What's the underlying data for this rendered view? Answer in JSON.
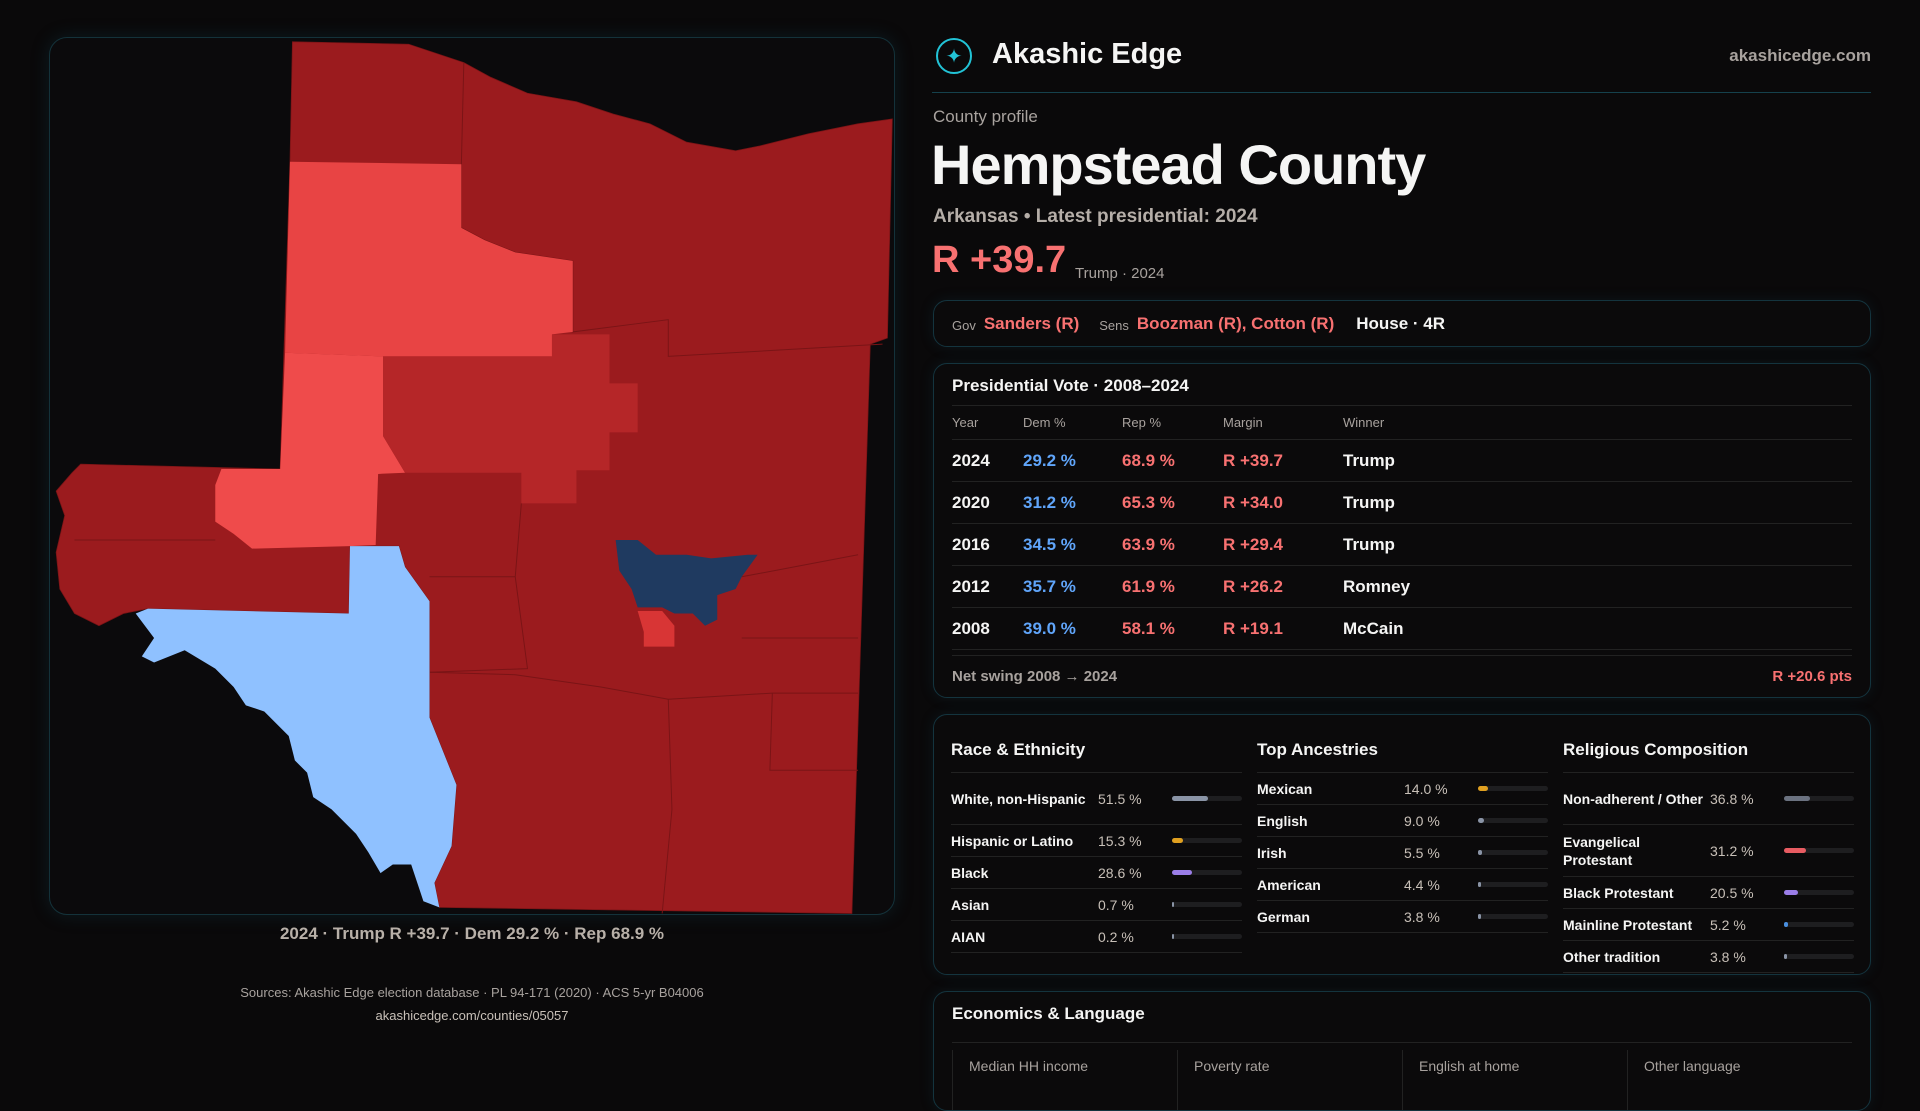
{
  "brand": {
    "name": "Akashic Edge",
    "url": "akashicedge.com",
    "logo_icon": "compass-star-icon"
  },
  "profile": {
    "eyebrow": "County profile",
    "title": "Hempstead County",
    "subtitle": "Arkansas • Latest presidential: 2024",
    "margin": "R +39.7",
    "margin_note": "Trump · 2024"
  },
  "officials": {
    "gov_label": "Gov",
    "gov": "Sanders (R)",
    "sens_label": "Sens",
    "sens": "Boozman (R), Cotton (R)",
    "house": "House · 4R"
  },
  "presidential": {
    "title": "Presidential Vote · 2008–2024",
    "headers": [
      "Year",
      "Dem %",
      "Rep %",
      "Margin",
      "Winner"
    ],
    "rows": [
      {
        "year": "2024",
        "dem": "29.2 %",
        "rep": "68.9 %",
        "margin": "R +39.7",
        "winner": "Trump"
      },
      {
        "year": "2020",
        "dem": "31.2 %",
        "rep": "65.3 %",
        "margin": "R +34.0",
        "winner": "Trump"
      },
      {
        "year": "2016",
        "dem": "34.5 %",
        "rep": "63.9 %",
        "margin": "R +29.4",
        "winner": "Trump"
      },
      {
        "year": "2012",
        "dem": "35.7 %",
        "rep": "61.9 %",
        "margin": "R +26.2",
        "winner": "Romney"
      },
      {
        "year": "2008",
        "dem": "39.0 %",
        "rep": "58.1 %",
        "margin": "R +19.1",
        "winner": "McCain"
      }
    ],
    "swing_label": "Net swing 2008 → 2024",
    "swing_value": "R +20.6 pts"
  },
  "race": {
    "title": "Race & Ethnicity",
    "items": [
      {
        "label": "White, non-Hispanic",
        "value": "51.5 %",
        "pct": 51.5,
        "color": "#8a94a6"
      },
      {
        "label": "Hispanic or Latino",
        "value": "15.3 %",
        "pct": 15.3,
        "color": "#e0a020"
      },
      {
        "label": "Black",
        "value": "28.6 %",
        "pct": 28.6,
        "color": "#9b7ee8"
      },
      {
        "label": "Asian",
        "value": "0.7 %",
        "pct": 0.7,
        "color": "#8a94a6"
      },
      {
        "label": "AIAN",
        "value": "0.2 %",
        "pct": 0.2,
        "color": "#8a94a6"
      }
    ]
  },
  "ancestry": {
    "title": "Top Ancestries",
    "items": [
      {
        "label": "Mexican",
        "value": "14.0 %",
        "pct": 14.0,
        "color": "#e0a020"
      },
      {
        "label": "English",
        "value": "9.0 %",
        "pct": 9.0,
        "color": "#8a94a6"
      },
      {
        "label": "Irish",
        "value": "5.5 %",
        "pct": 5.5,
        "color": "#8a94a6"
      },
      {
        "label": "American",
        "value": "4.4 %",
        "pct": 4.4,
        "color": "#8a94a6"
      },
      {
        "label": "German",
        "value": "3.8 %",
        "pct": 3.8,
        "color": "#8a94a6"
      }
    ]
  },
  "religion": {
    "title": "Religious Composition",
    "items": [
      {
        "label": "Non-adherent / Other",
        "value": "36.8 %",
        "pct": 36.8,
        "color": "#6b7280"
      },
      {
        "label": "Evangelical Protestant",
        "value": "31.2 %",
        "pct": 31.2,
        "color": "#e85c62"
      },
      {
        "label": "Black Protestant",
        "value": "20.5 %",
        "pct": 20.5,
        "color": "#9b7ee8"
      },
      {
        "label": "Mainline Protestant",
        "value": "5.2 %",
        "pct": 5.2,
        "color": "#4a8fe0"
      },
      {
        "label": "Other tradition",
        "value": "3.8 %",
        "pct": 3.8,
        "color": "#8a94a6"
      }
    ]
  },
  "economics": {
    "title": "Economics & Language",
    "labels": [
      "Median HH income",
      "Poverty rate",
      "English at home",
      "Other language"
    ]
  },
  "footer": {
    "sources": "Sources: Akashic Edge election database · PL 94-171 (2020) · ACS 5-yr B04006",
    "link": "akashicedge.com/counties/05057"
  },
  "map": {
    "caption": "2024 · Trump R +39.7 · Dem 29.2 % · Rep 68.9 %",
    "colors": {
      "strong_r": "#9b1b1e",
      "medium_r": "#b52628",
      "lean_r": "#e84444",
      "lean_r2": "#ef4b4b",
      "tilt_r": "#d83535",
      "lean_d": "#8fc1ff",
      "strong_d": "#1f3a60"
    }
  }
}
